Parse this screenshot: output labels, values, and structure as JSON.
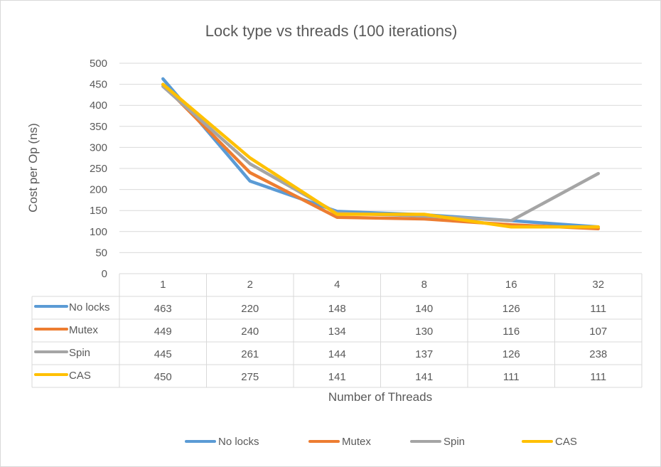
{
  "chart_data": {
    "type": "line",
    "title": "Lock type vs threads (100 iterations)",
    "xlabel": "Number of Threads",
    "ylabel": "Cost per Op (ns)",
    "categories": [
      "1",
      "2",
      "4",
      "8",
      "16",
      "32"
    ],
    "ylim": [
      0,
      500
    ],
    "yticks": [
      0,
      50,
      100,
      150,
      200,
      250,
      300,
      350,
      400,
      450,
      500
    ],
    "grid": true,
    "legend": "bottom",
    "data_table": true,
    "series": [
      {
        "name": "No locks",
        "color": "#5B9BD5",
        "values": [
          463,
          220,
          148,
          140,
          126,
          111
        ]
      },
      {
        "name": "Mutex",
        "color": "#ED7D31",
        "values": [
          449,
          240,
          134,
          130,
          116,
          107
        ]
      },
      {
        "name": "Spin",
        "color": "#A5A5A5",
        "values": [
          445,
          261,
          144,
          137,
          126,
          238
        ]
      },
      {
        "name": "CAS",
        "color": "#FFC000",
        "values": [
          450,
          275,
          141,
          141,
          111,
          111
        ]
      }
    ]
  }
}
